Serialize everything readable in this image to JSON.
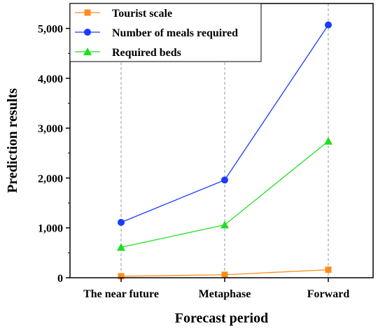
{
  "chart_data": {
    "type": "line",
    "xlabel": "Forecast period",
    "ylabel": "Prediction results",
    "categories": [
      "The near future",
      "Metaphase",
      "Forward"
    ],
    "ylim": [
      0,
      5500
    ],
    "yticks": [
      0,
      1000,
      2000,
      3000,
      4000,
      5000
    ],
    "ytick_labels": [
      "0",
      "1,000",
      "2,000",
      "3,000",
      "4,000",
      "5,000"
    ],
    "grid": "vertical dashed at categories",
    "legend_position": "top-left",
    "series": [
      {
        "name": "Tourist scale",
        "marker": "square",
        "color": "#ff8c1a",
        "values": [
          30,
          60,
          160
        ]
      },
      {
        "name": "Number of meals required",
        "marker": "circle",
        "color": "#1a3cff",
        "values": [
          1110,
          1960,
          5070
        ]
      },
      {
        "name": "Required beds",
        "marker": "triangle",
        "color": "#1ee01e",
        "values": [
          610,
          1060,
          2740
        ]
      }
    ]
  }
}
